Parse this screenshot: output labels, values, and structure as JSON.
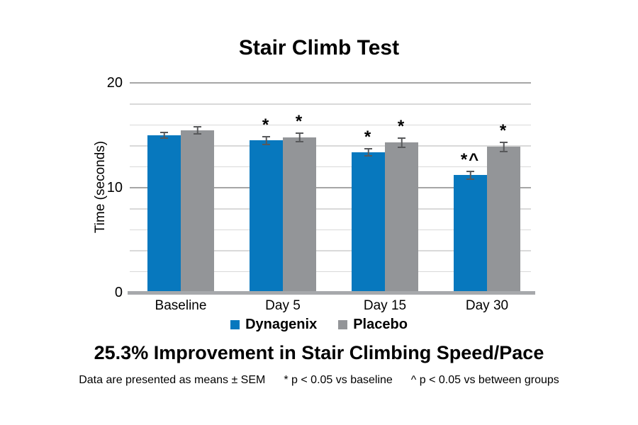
{
  "chart_data": {
    "type": "bar",
    "title": "Stair Climb Test",
    "ylabel": "Time (seconds)",
    "xlabel": "",
    "categories": [
      "Baseline",
      "Day 5",
      "Day 15",
      "Day 30"
    ],
    "series": [
      {
        "name": "Dynagenix",
        "color": "#0778BE",
        "values": [
          15.0,
          14.5,
          13.4,
          11.2
        ],
        "errors": [
          0.35,
          0.45,
          0.4,
          0.45
        ],
        "annotations": [
          "",
          "*",
          "*",
          "*^"
        ]
      },
      {
        "name": "Placebo",
        "color": "#939598",
        "values": [
          15.5,
          14.8,
          14.3,
          13.9
        ],
        "errors": [
          0.4,
          0.45,
          0.5,
          0.5
        ],
        "annotations": [
          "",
          "*",
          "*",
          "*"
        ]
      }
    ],
    "ylim": [
      0,
      20
    ],
    "yticks": [
      0,
      10,
      20
    ],
    "ytick_labels": [
      "0",
      "10",
      "20"
    ],
    "grid": true,
    "grid_step": 2,
    "legend_position": "bottom",
    "error_bar_style": "means ± SEM, capped I-beam",
    "colors": {
      "minor_grid": "#D9D9D9",
      "major_grid": "#A6A6A6",
      "axis_line": "#A7A9AC",
      "error_bar": "#58595B",
      "text": "#000000",
      "background": "#ffffff"
    }
  },
  "headline": "25.3% Improvement in Stair Climbing Speed/Pace",
  "footnote": {
    "part1": "Data are presented as means ± SEM",
    "part2": "* p < 0.05 vs baseline",
    "part3": "^ p < 0.05 vs between groups"
  }
}
